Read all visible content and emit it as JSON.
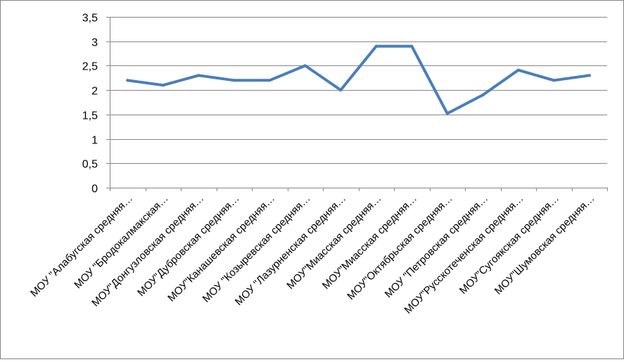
{
  "chart_data": {
    "type": "line",
    "title": "",
    "xlabel": "",
    "ylabel": "",
    "ylim": [
      0,
      3.5
    ],
    "y_ticks": [
      "0",
      "0,5",
      "1",
      "1,5",
      "2",
      "2,5",
      "3",
      "3,5"
    ],
    "y_tick_values": [
      0,
      0.5,
      1,
      1.5,
      2,
      2.5,
      3,
      3.5
    ],
    "grid": "horizontal",
    "legend": "none",
    "categories": [
      "МОУ \"Алабугская средняя…",
      "МОУ \"Бродокалмакская…",
      "МОУ\"Донгузловская средняя…",
      "МОУ\"Дубровская средняя…",
      "МОУ\"Канашевская средняя…",
      "МОУ \"Козыревская средняя…",
      "МОУ \"Лазурненская средняя…",
      "МОУ\"Миасская средняя…",
      "МОУ\"Миасская средняя…",
      "МОУ\"Октябрьская средняя…",
      "МОУ \"Петровская средняя…",
      "МОУ\"Русскотеченская средняя…",
      "МОУ\"Сугоякская средняя…",
      "МОУ\"Шумовская средняя…"
    ],
    "series": [
      {
        "values": [
          2.2,
          2.1,
          2.3,
          2.2,
          2.2,
          2.5,
          2.0,
          2.9,
          2.9,
          1.52,
          1.9,
          2.41,
          2.2,
          2.3
        ],
        "color": "#4a7ebb"
      }
    ]
  },
  "colors": {
    "grid": "#868686",
    "axis": "#868686",
    "frame": "#868686"
  }
}
